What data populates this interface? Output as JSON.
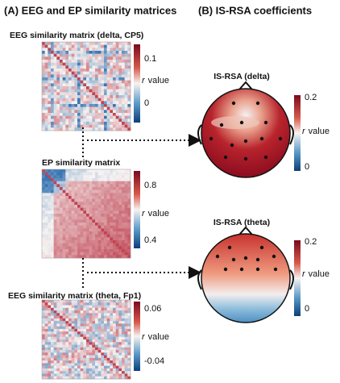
{
  "panel_a": {
    "title": "(A) EEG and EP similarity matrices",
    "matrices": [
      {
        "title": "EEG similarity matrix (delta, CP5)",
        "ticks": [
          "0.1",
          "0"
        ]
      },
      {
        "title": "EP similarity matrix",
        "ticks": [
          "0.8",
          "0.4"
        ]
      },
      {
        "title": "EEG similarity matrix (theta, Fp1)",
        "ticks": [
          "0.06",
          "-0.04"
        ]
      }
    ]
  },
  "panel_b": {
    "title": "(B) IS-RSA coefficients",
    "maps": [
      {
        "title": "IS-RSA (delta)",
        "ticks": [
          "0.2",
          "0"
        ]
      },
      {
        "title": "IS-RSA (theta)",
        "ticks": [
          "0.2",
          "0"
        ]
      }
    ]
  },
  "colorbar_label": {
    "symbol": "r",
    "text": "value"
  }
}
